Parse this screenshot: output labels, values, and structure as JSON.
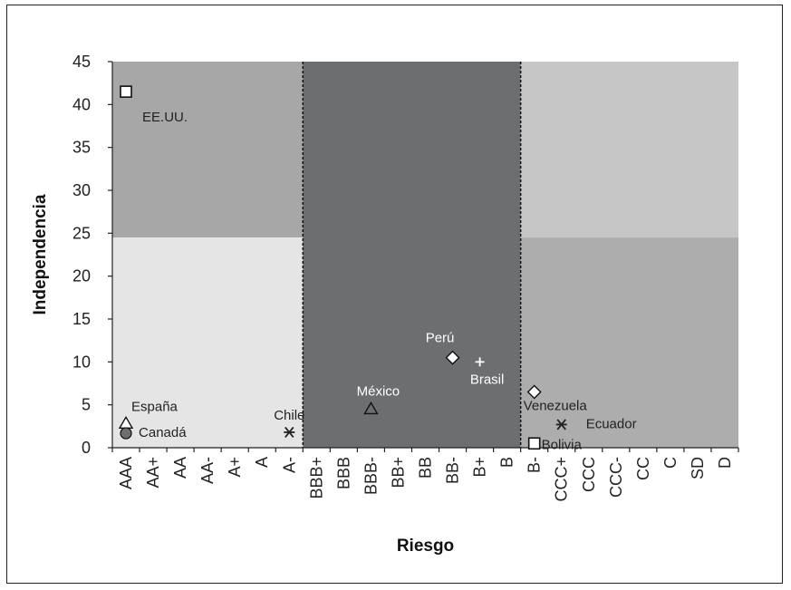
{
  "chart_data": {
    "type": "scatter",
    "xlabel": "Riesgo",
    "ylabel": "Independencia",
    "categories": [
      "AAA",
      "AA+",
      "AA",
      "AA-",
      "A+",
      "A",
      "A-",
      "BBB+",
      "BBB",
      "BBB-",
      "BB+",
      "BB",
      "BB-",
      "B+",
      "B",
      "B-",
      "CCC+",
      "CCC",
      "CCC-",
      "CC",
      "C",
      "SD",
      "D"
    ],
    "ylim": [
      0,
      45
    ],
    "yticks": [
      0,
      5,
      10,
      15,
      20,
      25,
      30,
      35,
      40,
      45
    ],
    "grid": false,
    "regions": [
      {
        "x_from": "AAA",
        "x_to": "A-",
        "y_from": 24.5,
        "y_to": 45,
        "color": "#a7a7a7"
      },
      {
        "x_from": "AAA",
        "x_to": "A-",
        "y_from": 0,
        "y_to": 24.5,
        "color": "#e5e5e6"
      },
      {
        "x_from": "BBB+",
        "x_to": "B",
        "y_from": 0,
        "y_to": 45,
        "color": "#6d6e70"
      },
      {
        "x_from": "B-",
        "x_to": "D",
        "y_from": 24.5,
        "y_to": 45,
        "color": "#c6c6c7"
      },
      {
        "x_from": "B-",
        "x_to": "D",
        "y_from": 0,
        "y_to": 24.5,
        "color": "#adadad"
      }
    ],
    "dividers": [
      "A-/BBB+",
      "B/B-"
    ],
    "points": [
      {
        "label": "EE.UU.",
        "x": "AAA",
        "y": 41.5,
        "marker": "square",
        "fill": "#ffffff"
      },
      {
        "label": "España",
        "x": "AAA",
        "y": 2.5,
        "marker": "triangle",
        "fill": "#ffffff"
      },
      {
        "label": "Canadá",
        "x": "AAA",
        "y": 2.0,
        "marker": "circle",
        "fill": "#6d6e70"
      },
      {
        "label": "Chile",
        "x": "A-",
        "y": 1.8,
        "marker": "asterisk",
        "fill": "#222222"
      },
      {
        "label": "México",
        "x": "BBB-",
        "y": 4.5,
        "marker": "triangle",
        "fill": "#6d6e70"
      },
      {
        "label": "Perú",
        "x": "BB-",
        "y": 10.5,
        "marker": "diamond",
        "fill": "#ffffff"
      },
      {
        "label": "Brasil",
        "x": "B+",
        "y": 10.0,
        "marker": "plus",
        "fill": "#ffffff"
      },
      {
        "label": "Venezuela",
        "x": "B-",
        "y": 6.5,
        "marker": "diamond",
        "fill": "#ffffff"
      },
      {
        "label": "Ecuador",
        "x": "CCC+",
        "y": 2.7,
        "marker": "asterisk",
        "fill": "#222222"
      },
      {
        "label": "Bolivia",
        "x": "B-",
        "y": 0.5,
        "marker": "square",
        "fill": "#ffffff"
      }
    ]
  }
}
